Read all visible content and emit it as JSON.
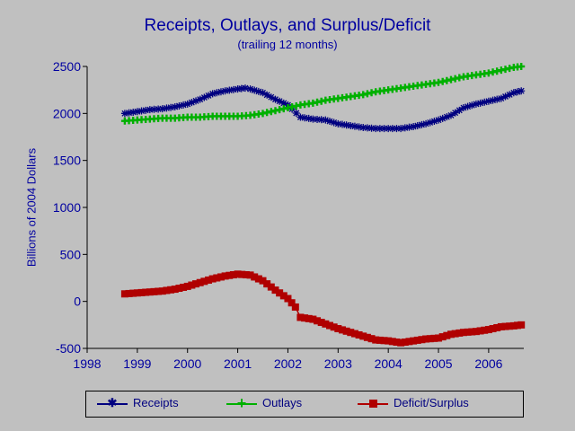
{
  "chart_data": {
    "type": "line",
    "title": "Receipts, Outlays, and Surplus/Deficit",
    "subtitle": "(trailing 12 months)",
    "ylabel": "Billions of 2004 Dollars",
    "xlabel": "",
    "xlim": [
      1998,
      2006.7
    ],
    "ylim": [
      -500,
      2500
    ],
    "xticks": [
      "1998",
      "1999",
      "2000",
      "2001",
      "2002",
      "2003",
      "2004",
      "2005",
      "2006"
    ],
    "yticks": [
      "2500",
      "2000",
      "1500",
      "1000",
      "500",
      "0",
      "-500"
    ],
    "grid": false,
    "legend_position": "bottom",
    "series": [
      {
        "name": "Receipts",
        "color": "#000080",
        "marker": "asterisk",
        "x": [
          1998.75,
          1999.0,
          1999.25,
          1999.5,
          1999.75,
          2000.0,
          2000.25,
          2000.5,
          2000.75,
          2001.0,
          2001.15,
          2001.25,
          2001.5,
          2001.75,
          2002.0,
          2002.25,
          2002.5,
          2002.75,
          2003.0,
          2003.25,
          2003.5,
          2003.75,
          2004.0,
          2004.25,
          2004.5,
          2004.75,
          2005.0,
          2005.25,
          2005.5,
          2005.75,
          2006.0,
          2006.25,
          2006.5,
          2006.65
        ],
        "y": [
          2000,
          2020,
          2040,
          2050,
          2070,
          2100,
          2150,
          2210,
          2240,
          2260,
          2270,
          2260,
          2220,
          2150,
          2090,
          1960,
          1940,
          1930,
          1890,
          1870,
          1850,
          1840,
          1840,
          1840,
          1860,
          1890,
          1930,
          1980,
          2060,
          2100,
          2130,
          2160,
          2220,
          2240
        ]
      },
      {
        "name": "Outlays",
        "color": "#00b000",
        "marker": "plus",
        "x": [
          1998.75,
          1999.0,
          1999.25,
          1999.5,
          1999.75,
          2000.0,
          2000.25,
          2000.5,
          2000.75,
          2001.0,
          2001.25,
          2001.5,
          2001.75,
          2002.0,
          2002.25,
          2002.5,
          2002.75,
          2003.0,
          2003.25,
          2003.5,
          2003.75,
          2004.0,
          2004.25,
          2004.5,
          2004.75,
          2005.0,
          2005.25,
          2005.5,
          2005.75,
          2006.0,
          2006.25,
          2006.5,
          2006.65
        ],
        "y": [
          1920,
          1930,
          1940,
          1950,
          1950,
          1960,
          1960,
          1970,
          1970,
          1970,
          1980,
          2000,
          2030,
          2060,
          2090,
          2110,
          2140,
          2160,
          2180,
          2200,
          2230,
          2250,
          2270,
          2290,
          2310,
          2330,
          2360,
          2390,
          2410,
          2430,
          2460,
          2490,
          2500
        ]
      },
      {
        "name": "Deficit/Surplus",
        "color": "#b00000",
        "marker": "square",
        "x": [
          1998.75,
          1999.0,
          1999.25,
          1999.5,
          1999.75,
          2000.0,
          2000.25,
          2000.5,
          2000.75,
          2001.0,
          2001.25,
          2001.5,
          2001.75,
          2002.0,
          2002.15,
          2002.25,
          2002.5,
          2002.75,
          2003.0,
          2003.25,
          2003.5,
          2003.75,
          2004.0,
          2004.25,
          2004.5,
          2004.75,
          2005.0,
          2005.25,
          2005.5,
          2005.75,
          2006.0,
          2006.25,
          2006.5,
          2006.65
        ],
        "y": [
          80,
          90,
          100,
          110,
          130,
          160,
          200,
          240,
          270,
          290,
          280,
          220,
          120,
          30,
          -60,
          -170,
          -190,
          -240,
          -290,
          -330,
          -370,
          -410,
          -420,
          -440,
          -420,
          -400,
          -390,
          -350,
          -330,
          -320,
          -300,
          -270,
          -260,
          -250
        ]
      }
    ]
  }
}
